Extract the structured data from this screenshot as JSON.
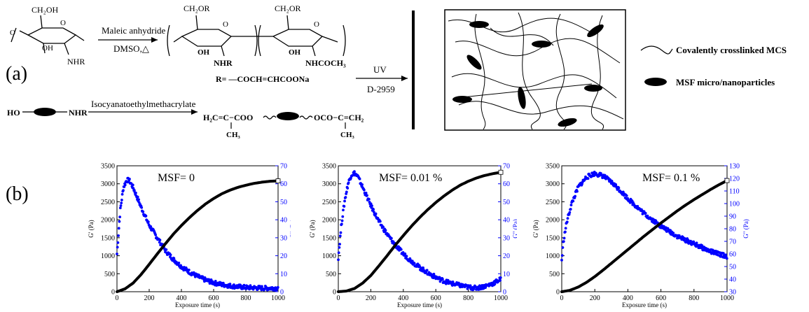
{
  "panel_a": {
    "label": "(a)",
    "reaction1": {
      "start_group": "CH₂OH",
      "start_oh": "OH",
      "start_nhr": "NHR",
      "reagent": "Maleic anhydride",
      "conditions": "DMSO,△",
      "prod_group1": "CH₂OR",
      "prod_group2": "CH₂OR",
      "prod_oh1": "OH",
      "prod_oh2": "OH",
      "prod_nhr": "NHR",
      "prod_nhcoch3": "NHCOCH₃",
      "r_def": "R= —COCH=CHCOONa"
    },
    "reaction2": {
      "ho": "HO",
      "nhr": "NHR",
      "reagent": "Isocyanatoethylmethacrylate",
      "product_left": "H₂C=C−COO",
      "product_right": "OCO−C=CH₂",
      "ch3_left": "CH₃",
      "ch3_right": "CH₃"
    },
    "uv_label": "UV",
    "initiator_label": "D-2959",
    "legend": {
      "line_label": "Covalently crosslinked MCS",
      "particle_label": "MSF micro/nanoparticles"
    }
  },
  "panel_b": {
    "label": "(b)",
    "left_axis_label": "G' (Pa)",
    "right_axis_label": "G\" (Pa)",
    "x_axis_label": "Exposure time (s)"
  },
  "colors": {
    "g_prime": "#000000",
    "g_double_prime": "#0000ff"
  },
  "chart_data": [
    {
      "type": "scatter",
      "annotation": "MSF= 0",
      "xlabel": "Exposure time (s)",
      "ylabel": "G' (Pa)",
      "y2label": "G\" (Pa)",
      "xlim": [
        0,
        1000
      ],
      "ylim": [
        0,
        3500
      ],
      "y2lim": [
        0,
        70
      ],
      "x_ticks": [
        0,
        200,
        400,
        600,
        800,
        1000
      ],
      "y_ticks": [
        0,
        500,
        1000,
        1500,
        2000,
        2500,
        3000,
        3500
      ],
      "y2_ticks": [
        0,
        10,
        20,
        30,
        40,
        50,
        60,
        70
      ],
      "series": [
        {
          "axis": "left",
          "x": [
            0,
            50,
            100,
            150,
            200,
            250,
            300,
            350,
            400,
            450,
            500,
            550,
            600,
            650,
            700,
            750,
            800,
            850,
            900,
            950,
            1000
          ],
          "values": [
            0,
            80,
            240,
            480,
            760,
            1050,
            1330,
            1600,
            1840,
            2060,
            2260,
            2440,
            2590,
            2720,
            2820,
            2900,
            2960,
            3010,
            3045,
            3070,
            3080
          ]
        },
        {
          "axis": "right",
          "x": [
            0,
            20,
            40,
            60,
            75,
            100,
            150,
            200,
            250,
            300,
            350,
            400,
            450,
            500,
            550,
            600,
            650,
            700,
            750,
            800,
            850,
            900,
            950,
            1000
          ],
          "values": [
            21,
            45,
            58,
            62,
            62,
            58,
            47,
            37,
            30,
            23,
            18,
            14,
            11,
            8.5,
            6.5,
            5,
            4,
            3.3,
            2.8,
            2.4,
            2.2,
            2,
            2,
            2
          ]
        }
      ]
    },
    {
      "type": "scatter",
      "annotation": "MSF= 0.01 %",
      "xlabel": "Exposure time (s)",
      "ylabel": "G' (Pa)",
      "y2label": "G\" (Pa)",
      "xlim": [
        0,
        1000
      ],
      "ylim": [
        0,
        3500
      ],
      "y2lim": [
        0,
        70
      ],
      "x_ticks": [
        0,
        200,
        400,
        600,
        800,
        1000
      ],
      "y_ticks": [
        0,
        500,
        1000,
        1500,
        2000,
        2500,
        3000,
        3500
      ],
      "y2_ticks": [
        0,
        10,
        20,
        30,
        40,
        50,
        60,
        70
      ],
      "series": [
        {
          "axis": "left",
          "x": [
            0,
            50,
            100,
            150,
            200,
            250,
            300,
            350,
            400,
            450,
            500,
            550,
            600,
            650,
            700,
            750,
            800,
            850,
            900,
            950,
            1000
          ],
          "values": [
            0,
            20,
            90,
            240,
            450,
            720,
            1000,
            1290,
            1560,
            1820,
            2060,
            2280,
            2480,
            2660,
            2820,
            2960,
            3070,
            3160,
            3230,
            3280,
            3320
          ]
        },
        {
          "axis": "right",
          "x": [
            0,
            20,
            40,
            60,
            80,
            100,
            120,
            150,
            200,
            250,
            300,
            350,
            400,
            450,
            500,
            550,
            600,
            650,
            700,
            750,
            800,
            850,
            900,
            950,
            1000
          ],
          "values": [
            19,
            38,
            51,
            60,
            65,
            66,
            64,
            58,
            48,
            39,
            32,
            26,
            21,
            17,
            13.5,
            10.5,
            8,
            6,
            4.5,
            3.5,
            2.5,
            2,
            3,
            4.5,
            7
          ]
        }
      ]
    },
    {
      "type": "scatter",
      "annotation": "MSF= 0.1 %",
      "xlabel": "Exposure time (s)",
      "ylabel": "G' (Pa)",
      "y2label": "G\" (Pa)",
      "xlim": [
        0,
        1000
      ],
      "ylim": [
        0,
        3500
      ],
      "y2lim": [
        30,
        130
      ],
      "x_ticks": [
        0,
        200,
        400,
        600,
        800,
        1000
      ],
      "y_ticks": [
        0,
        500,
        1000,
        1500,
        2000,
        2500,
        3000,
        3500
      ],
      "y2_ticks": [
        30,
        40,
        50,
        60,
        70,
        80,
        90,
        100,
        110,
        120,
        130
      ],
      "series": [
        {
          "axis": "left",
          "x": [
            0,
            50,
            100,
            150,
            200,
            250,
            300,
            350,
            400,
            450,
            500,
            550,
            600,
            650,
            700,
            750,
            800,
            850,
            900,
            950,
            1000
          ],
          "values": [
            0,
            40,
            130,
            260,
            420,
            600,
            790,
            980,
            1170,
            1360,
            1550,
            1730,
            1910,
            2080,
            2250,
            2410,
            2560,
            2700,
            2840,
            2970,
            3090
          ]
        },
        {
          "axis": "right",
          "x": [
            0,
            10,
            30,
            60,
            100,
            150,
            200,
            250,
            300,
            350,
            400,
            450,
            500,
            550,
            600,
            650,
            700,
            750,
            800,
            850,
            900,
            950,
            1000
          ],
          "values": [
            55,
            70,
            85,
            100,
            113,
            121,
            124,
            122,
            117,
            111,
            104,
            98,
            92,
            87,
            82,
            78,
            74,
            71,
            68,
            65,
            62,
            60,
            58
          ]
        }
      ]
    }
  ]
}
